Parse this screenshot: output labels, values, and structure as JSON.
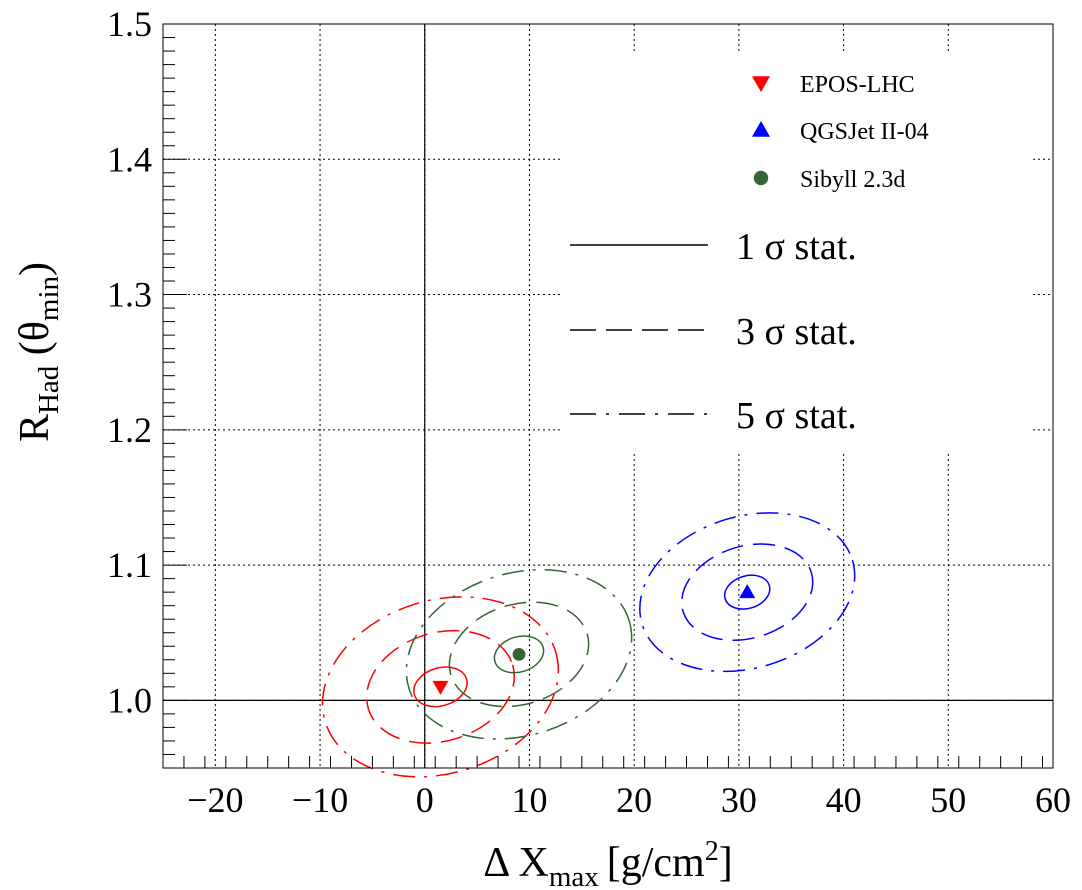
{
  "chart_data": {
    "type": "scatter",
    "xlabel": {
      "main": "Δ X",
      "sub": "max",
      "unit": "[g/cm",
      "sup": "2",
      "close": "]"
    },
    "ylabel": {
      "main": "R",
      "sub": "Had",
      "paren_open": " (θ",
      "sub2": "min",
      "paren_close": ")"
    },
    "xlim": [
      -25,
      60
    ],
    "ylim": [
      0.95,
      1.5
    ],
    "x_ticks": [
      -20,
      -10,
      0,
      10,
      20,
      30,
      40,
      50,
      60
    ],
    "x_tick_labels": [
      "−20",
      "−10",
      "0",
      "10",
      "20",
      "30",
      "40",
      "50",
      "60"
    ],
    "y_ticks": [
      1.0,
      1.1,
      1.2,
      1.3,
      1.4,
      1.5
    ],
    "y_tick_labels": [
      "1.0",
      "1.1",
      "1.2",
      "1.3",
      "1.4",
      "1.5"
    ],
    "grid": "dotted",
    "reference_lines": {
      "x": 0,
      "y": 1.0
    },
    "series": [
      {
        "name": "EPOS-LHC",
        "marker": "triangle-down",
        "color": "#ff0000",
        "x": 1.5,
        "y": 1.01,
        "contours": [
          {
            "level": "1 σ stat.",
            "rx": 2.6,
            "ry": 0.014,
            "dash": "solid"
          },
          {
            "level": "3 σ stat.",
            "rx": 7.2,
            "ry": 0.04,
            "dash": "dashed"
          },
          {
            "level": "5 σ stat.",
            "rx": 11.5,
            "ry": 0.064,
            "dash": "dashdot"
          }
        ]
      },
      {
        "name": "QGSJet II-04",
        "marker": "triangle-up",
        "color": "#0000ff",
        "x": 30.8,
        "y": 1.08,
        "contours": [
          {
            "level": "1 σ stat.",
            "rx": 2.2,
            "ry": 0.012,
            "dash": "solid"
          },
          {
            "level": "3 σ stat.",
            "rx": 6.4,
            "ry": 0.034,
            "dash": "dashed"
          },
          {
            "level": "5 σ stat.",
            "rx": 10.5,
            "ry": 0.056,
            "dash": "dashdot"
          }
        ]
      },
      {
        "name": "Sibyll 2.3d",
        "marker": "circle",
        "color": "#336633",
        "x": 9.0,
        "y": 1.034,
        "contours": [
          {
            "level": "1 σ stat.",
            "rx": 2.4,
            "ry": 0.013,
            "dash": "solid"
          },
          {
            "level": "3 σ stat.",
            "rx": 6.8,
            "ry": 0.037,
            "dash": "dashed"
          },
          {
            "level": "5 σ stat.",
            "rx": 11.0,
            "ry": 0.06,
            "dash": "dashdot"
          }
        ]
      }
    ],
    "legend": {
      "placement": "top-right",
      "models": [
        "EPOS-LHC",
        "QGSJet II-04",
        "Sibyll 2.3d"
      ],
      "levels": [
        "1 σ stat.",
        "3 σ stat.",
        "5 σ stat."
      ]
    }
  }
}
